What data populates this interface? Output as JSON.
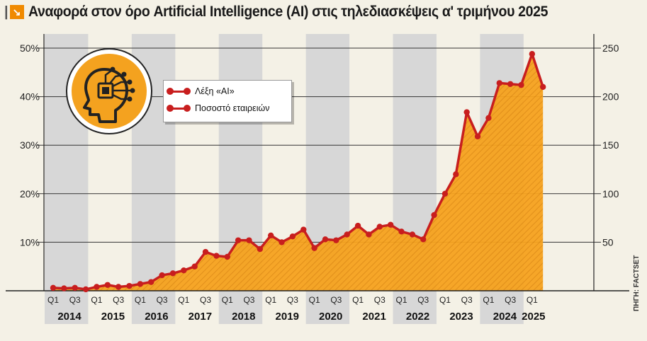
{
  "header": {
    "title_mark": "|",
    "title_icon": "↘",
    "title": "Αναφορά στον όρο Artificial Intelligence (AI) στις τηλεδιασκέψεις α' τριμήνου 2025"
  },
  "source": "ΠΗΓΗ: FACTSET",
  "icon_name": "ai-head-chip-icon",
  "colors": {
    "line": "#c81e1e",
    "area": "#f6a21e",
    "stripe": "#d7d7d7",
    "background": "#f4f1e6"
  },
  "chart_data": {
    "type": "line",
    "title": "Αναφορά στον όρο Artificial Intelligence (AI) στις τηλεδιασκέψεις α' τριμήνου 2025",
    "x_quarter_labels": [
      "Q1",
      "Q3"
    ],
    "years": [
      "2014",
      "2015",
      "2016",
      "2017",
      "2018",
      "2019",
      "2020",
      "2021",
      "2022",
      "2023",
      "2024",
      "2025"
    ],
    "y_left": {
      "ticks": [
        "10%",
        "20%",
        "30%",
        "40%",
        "50%"
      ],
      "range": [
        0,
        50
      ]
    },
    "y_right": {
      "ticks": [
        "50",
        "100",
        "150",
        "200",
        "250"
      ],
      "range": [
        0,
        250
      ]
    },
    "grid": "horizontal",
    "legend_position": "top-left",
    "series": [
      {
        "name": "Λέξη «AI»",
        "axis": "right",
        "values": [
          3,
          2.5,
          3,
          1.5,
          4,
          6,
          4,
          5,
          7,
          9,
          16,
          18,
          21,
          25,
          40,
          36,
          35,
          52,
          52,
          43,
          57,
          50,
          56,
          63,
          44,
          53,
          52,
          58,
          67,
          58,
          66,
          68,
          61,
          58,
          53,
          78,
          100,
          120,
          184,
          159,
          178,
          214,
          213,
          212,
          244,
          210
        ]
      },
      {
        "name": "Ποσοστό εταιρειών",
        "axis": "left",
        "values": [
          0.6,
          0.5,
          0.6,
          0.3,
          0.8,
          1.2,
          0.8,
          1.0,
          1.4,
          1.8,
          3.2,
          3.6,
          4.2,
          5.0,
          8.0,
          7.2,
          7.0,
          10.4,
          10.4,
          8.6,
          11.4,
          10.0,
          11.2,
          12.6,
          8.8,
          10.6,
          10.4,
          11.6,
          13.4,
          11.6,
          13.2,
          13.6,
          12.2,
          11.6,
          10.6,
          15.6,
          20.0,
          24.0,
          36.8,
          31.8,
          35.6,
          42.8,
          42.6,
          42.4,
          48.8,
          42.0
        ]
      }
    ]
  }
}
